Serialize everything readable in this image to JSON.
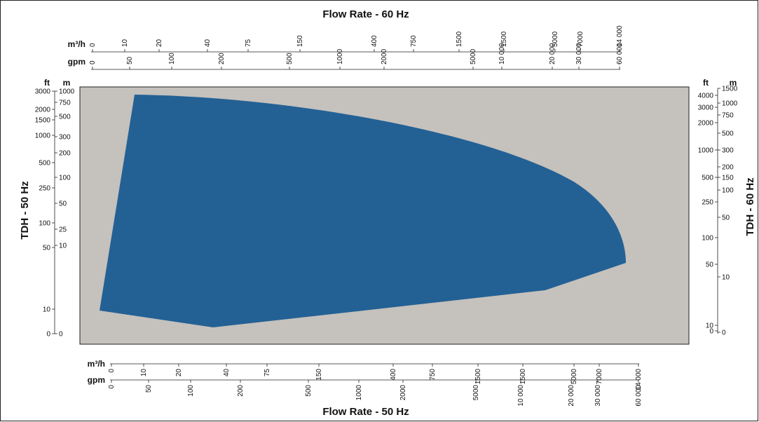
{
  "colors": {
    "plot_background": "#c5c1bc",
    "envelope_fill": "#236195",
    "frame": "#222222"
  },
  "chart_data": {
    "type": "area",
    "series": [
      {
        "values": []
      }
    ],
    "top_axis": {
      "title": "Flow Rate - 60 Hz",
      "rows": [
        {
          "unit": "m³/h",
          "ticks": [
            "0",
            "10",
            "20",
            "40",
            "75",
            "150",
            "400",
            "750",
            "1500",
            "1500",
            "5000",
            "7000",
            "14 000"
          ]
        },
        {
          "unit": "gpm",
          "ticks": [
            "0",
            "50",
            "100",
            "200",
            "500",
            "1000",
            "2000",
            "5000",
            "10 000",
            "20 000",
            "30 000",
            "60 000"
          ]
        }
      ]
    },
    "bottom_axis": {
      "title": "Flow Rate - 50 Hz",
      "rows": [
        {
          "unit": "m³/h",
          "ticks": [
            "0",
            "10",
            "20",
            "40",
            "75",
            "150",
            "400",
            "750",
            "1500",
            "1500",
            "5000",
            "7000",
            "14 000"
          ]
        },
        {
          "unit": "gpm",
          "ticks": [
            "0",
            "50",
            "100",
            "200",
            "500",
            "1000",
            "2000",
            "5000",
            "10 000",
            "20 000",
            "30 000",
            "60 000"
          ]
        }
      ]
    },
    "left_axis": {
      "title": "TDH - 50 Hz",
      "ft_unit": "ft",
      "m_unit": "m",
      "ft_ticks": [
        "3000",
        "2000",
        "1500",
        "1000",
        "500",
        "250",
        "100",
        "50",
        "10",
        "0"
      ],
      "m_ticks": [
        "1000",
        "750",
        "500",
        "300",
        "200",
        "100",
        "50",
        "25",
        "10",
        "0"
      ]
    },
    "right_axis": {
      "title": "TDH - 60 Hz",
      "ft_unit": "ft",
      "m_unit": "m",
      "ft_ticks": [
        "4000",
        "3000",
        "2000",
        "1000",
        "500",
        "250",
        "100",
        "50",
        "10",
        "0"
      ],
      "m_ticks": [
        "1500",
        "1000",
        "750",
        "500",
        "300",
        "200",
        "150",
        "100",
        "50",
        "10",
        "0"
      ]
    }
  }
}
